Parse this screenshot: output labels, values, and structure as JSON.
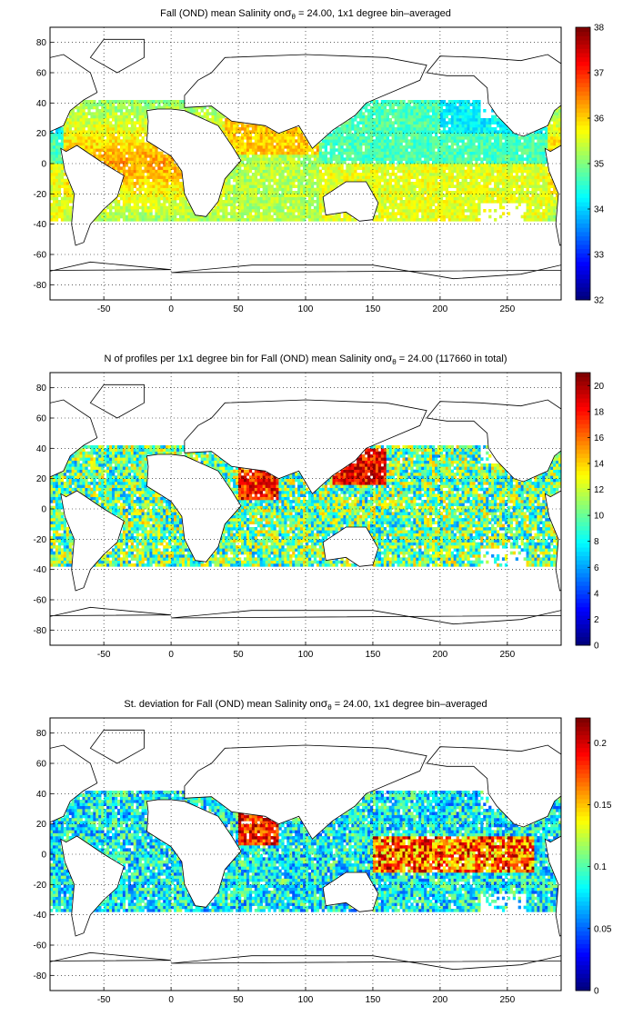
{
  "chart_data": [
    {
      "type": "heatmap",
      "title_prefix": "Fall (OND) mean Salinity on",
      "title_sigma": "σ",
      "title_sub": "θ",
      "title_suffix": " = 24.00, 1x1 degree bin–averaged",
      "x_ticks": [
        "-50",
        "0",
        "50",
        "100",
        "150",
        "200",
        "250"
      ],
      "y_ticks": [
        "80",
        "60",
        "40",
        "20",
        "0",
        "-20",
        "-40",
        "-60",
        "-80"
      ],
      "xlim": [
        -90,
        290
      ],
      "ylim": [
        -90,
        90
      ],
      "grid": true,
      "colorbar": {
        "min": 32,
        "max": 38,
        "ticks": [
          "38",
          "37",
          "36",
          "35",
          "34",
          "33",
          "32"
        ]
      },
      "colormap": "jet"
    },
    {
      "type": "heatmap",
      "title_prefix": "N of profiles per 1x1 degree bin for Fall (OND) mean Salinity on",
      "title_sigma": "σ",
      "title_sub": "θ",
      "title_suffix": " = 24.00 (117660 in total)",
      "x_ticks": [
        "-50",
        "0",
        "50",
        "100",
        "150",
        "200",
        "250"
      ],
      "y_ticks": [
        "80",
        "60",
        "40",
        "20",
        "0",
        "-20",
        "-40",
        "-60",
        "-80"
      ],
      "xlim": [
        -90,
        290
      ],
      "ylim": [
        -90,
        90
      ],
      "grid": true,
      "colorbar": {
        "min": 0,
        "max": 21,
        "ticks": [
          "20",
          "18",
          "16",
          "14",
          "12",
          "10",
          "8",
          "6",
          "4",
          "2",
          "0"
        ]
      },
      "colormap": "jet"
    },
    {
      "type": "heatmap",
      "title_prefix": "St. deviation for Fall (OND) mean Salinity on",
      "title_sigma": "σ",
      "title_sub": "θ",
      "title_suffix": " = 24.00, 1x1 degree bin–averaged",
      "x_ticks": [
        "-50",
        "0",
        "50",
        "100",
        "150",
        "200",
        "250"
      ],
      "y_ticks": [
        "80",
        "60",
        "40",
        "20",
        "0",
        "-20",
        "-40",
        "-60",
        "-80"
      ],
      "xlim": [
        -90,
        290
      ],
      "ylim": [
        -90,
        90
      ],
      "grid": true,
      "colorbar": {
        "min": 0,
        "max": 0.22,
        "ticks": [
          "0.2",
          "0.15",
          "0.1",
          "0.05",
          "0"
        ]
      },
      "colormap": "jet"
    }
  ]
}
